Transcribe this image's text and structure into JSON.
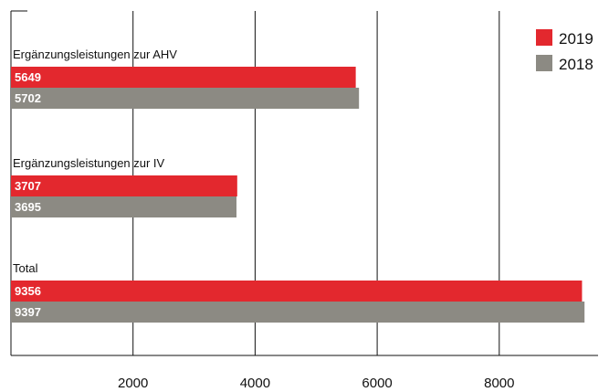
{
  "chart_data": {
    "type": "bar",
    "orientation": "horizontal",
    "categories": [
      "Ergänzungsleistungen zur AHV",
      "Ergänzungsleistungen zur IV",
      "Total"
    ],
    "series": [
      {
        "name": "2019",
        "values": [
          5649,
          3707,
          9356
        ],
        "labels": [
          "5649",
          "3707",
          "9356"
        ],
        "color": "#e3282e"
      },
      {
        "name": "2018",
        "values": [
          5702,
          3695,
          9397
        ],
        "labels": [
          "5702",
          "3695",
          "9397"
        ],
        "color": "#8c8a83"
      }
    ],
    "xticks": [
      2000,
      4000,
      6000,
      8000
    ],
    "xtick_labels": [
      "2000",
      "4000",
      "6000",
      "8000"
    ],
    "xlim": [
      0,
      9550
    ],
    "grid": "vertical",
    "legend_position": "top-right"
  }
}
